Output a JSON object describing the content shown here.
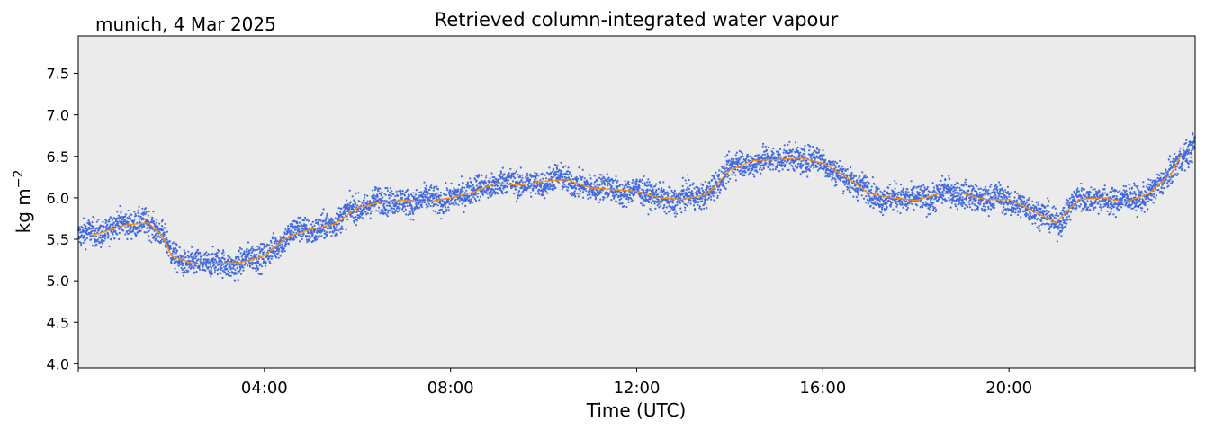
{
  "chart_data": {
    "type": "scatter",
    "title": "Retrieved column-integrated water vapour",
    "subtitle": "munich, 4 Mar 2025",
    "xlabel": "Time (UTC)",
    "ylabel": "kg m",
    "ylabel_superscript": "−2",
    "x_unit": "hours UTC",
    "xlim": [
      0,
      24
    ],
    "ylim": [
      3.95,
      7.95
    ],
    "x_ticks": [
      {
        "value": 0,
        "label": ""
      },
      {
        "value": 4,
        "label": "04:00"
      },
      {
        "value": 8,
        "label": "08:00"
      },
      {
        "value": 12,
        "label": "12:00"
      },
      {
        "value": 16,
        "label": "16:00"
      },
      {
        "value": 20,
        "label": "20:00"
      },
      {
        "value": 24,
        "label": ""
      }
    ],
    "y_ticks": [
      {
        "value": 4.0,
        "label": "4.0"
      },
      {
        "value": 4.5,
        "label": "4.5"
      },
      {
        "value": 5.0,
        "label": "5.0"
      },
      {
        "value": 5.5,
        "label": "5.5"
      },
      {
        "value": 6.0,
        "label": "6.0"
      },
      {
        "value": 6.5,
        "label": "6.5"
      },
      {
        "value": 7.0,
        "label": "7.0"
      },
      {
        "value": 7.5,
        "label": "7.5"
      }
    ],
    "grid": false,
    "legend": false,
    "background_color": "#ebebeb",
    "series": [
      {
        "kind": "scatter",
        "color": "#4169e1",
        "x": [
          0.0,
          0.5,
          1.0,
          1.5,
          1.8,
          2.0,
          2.5,
          3.0,
          3.5,
          4.0,
          4.5,
          5.0,
          5.5,
          6.0,
          6.5,
          7.0,
          7.5,
          8.0,
          8.5,
          9.0,
          9.5,
          10.0,
          10.5,
          11.0,
          11.5,
          12.0,
          12.5,
          13.0,
          13.5,
          14.0,
          14.5,
          15.0,
          15.5,
          16.0,
          16.5,
          17.0,
          17.5,
          18.0,
          18.5,
          19.0,
          19.5,
          20.0,
          20.5,
          21.0,
          21.5,
          22.0,
          22.5,
          23.0,
          23.5,
          24.0
        ],
        "y": [
          5.55,
          5.6,
          5.68,
          5.72,
          5.55,
          5.3,
          5.2,
          5.2,
          5.22,
          5.3,
          5.55,
          5.62,
          5.68,
          5.9,
          5.95,
          5.97,
          5.95,
          6.0,
          6.08,
          6.2,
          6.15,
          6.2,
          6.22,
          6.12,
          6.1,
          6.08,
          6.0,
          5.98,
          6.05,
          6.35,
          6.45,
          6.45,
          6.5,
          6.42,
          6.25,
          6.05,
          6.0,
          5.97,
          6.05,
          6.05,
          5.98,
          5.98,
          5.85,
          5.7,
          5.98,
          6.0,
          5.95,
          6.05,
          6.3,
          6.7
        ],
        "spread": 0.08
      },
      {
        "kind": "line",
        "color": "#ff8c00",
        "x": [
          0.3,
          0.5,
          1.0,
          1.5,
          1.8,
          2.0,
          2.5,
          3.0,
          3.5,
          4.0,
          4.5,
          5.0,
          5.5,
          6.0,
          6.5,
          7.0,
          7.5,
          8.0,
          8.5,
          9.0,
          9.5,
          10.0,
          10.5,
          11.0,
          11.5,
          12.0,
          12.5,
          13.0,
          13.5,
          14.0,
          14.5,
          15.0,
          15.5,
          16.0,
          16.5,
          17.0,
          17.5,
          18.0,
          18.5,
          19.0,
          19.5,
          20.0,
          20.5,
          21.0,
          21.5,
          22.0,
          22.5,
          23.0,
          23.5,
          23.7
        ],
        "y": [
          5.55,
          5.58,
          5.67,
          5.7,
          5.55,
          5.3,
          5.2,
          5.21,
          5.22,
          5.3,
          5.53,
          5.62,
          5.68,
          5.88,
          5.95,
          5.97,
          5.95,
          6.0,
          6.07,
          6.18,
          6.15,
          6.2,
          6.22,
          6.12,
          6.1,
          6.08,
          6.0,
          5.98,
          6.04,
          6.33,
          6.45,
          6.46,
          6.48,
          6.42,
          6.25,
          6.05,
          6.0,
          5.97,
          6.05,
          6.05,
          5.98,
          5.98,
          5.85,
          5.7,
          5.98,
          6.0,
          5.95,
          6.05,
          6.3,
          6.52
        ]
      }
    ]
  }
}
